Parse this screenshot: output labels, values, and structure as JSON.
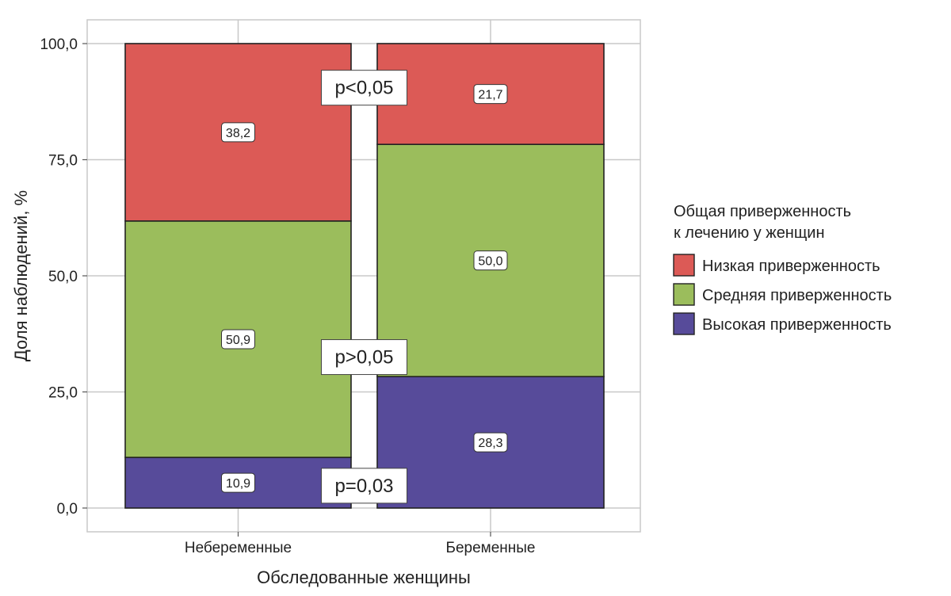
{
  "chart_data": {
    "type": "bar",
    "stacked": true,
    "categories": [
      "Небеременные",
      "Беременные"
    ],
    "series": [
      {
        "name": "Высокая приверженность",
        "values": [
          10.9,
          28.3
        ],
        "color": "#574b9a"
      },
      {
        "name": "Средняя приверженность",
        "values": [
          50.9,
          50.0
        ],
        "color": "#9bbd5c"
      },
      {
        "name": "Низкая приверженность",
        "values": [
          38.2,
          21.7
        ],
        "color": "#dc5a56"
      }
    ],
    "xlabel": "Обследованные женщины",
    "ylabel": "Доля наблюдений, %",
    "ylim": [
      0,
      100
    ],
    "yticks": [
      0,
      25,
      50,
      75,
      100
    ],
    "ytick_labels": [
      "0,0",
      "25,0",
      "50,0",
      "75,0",
      "100,0"
    ],
    "grid": true,
    "legend": {
      "title_lines": [
        "Общая приверженность",
        "к лечению у женщин"
      ],
      "placement": "right",
      "items": [
        "Низкая приверженность",
        "Средняя приверженность",
        "Высокая приверженность"
      ]
    },
    "annotations": [
      {
        "text": "p<0,05",
        "series": "Низкая приверженность"
      },
      {
        "text": "p>0,05",
        "series": "Средняя приверженность"
      },
      {
        "text": "p=0,03",
        "series": "Высокая приверженность"
      }
    ]
  }
}
